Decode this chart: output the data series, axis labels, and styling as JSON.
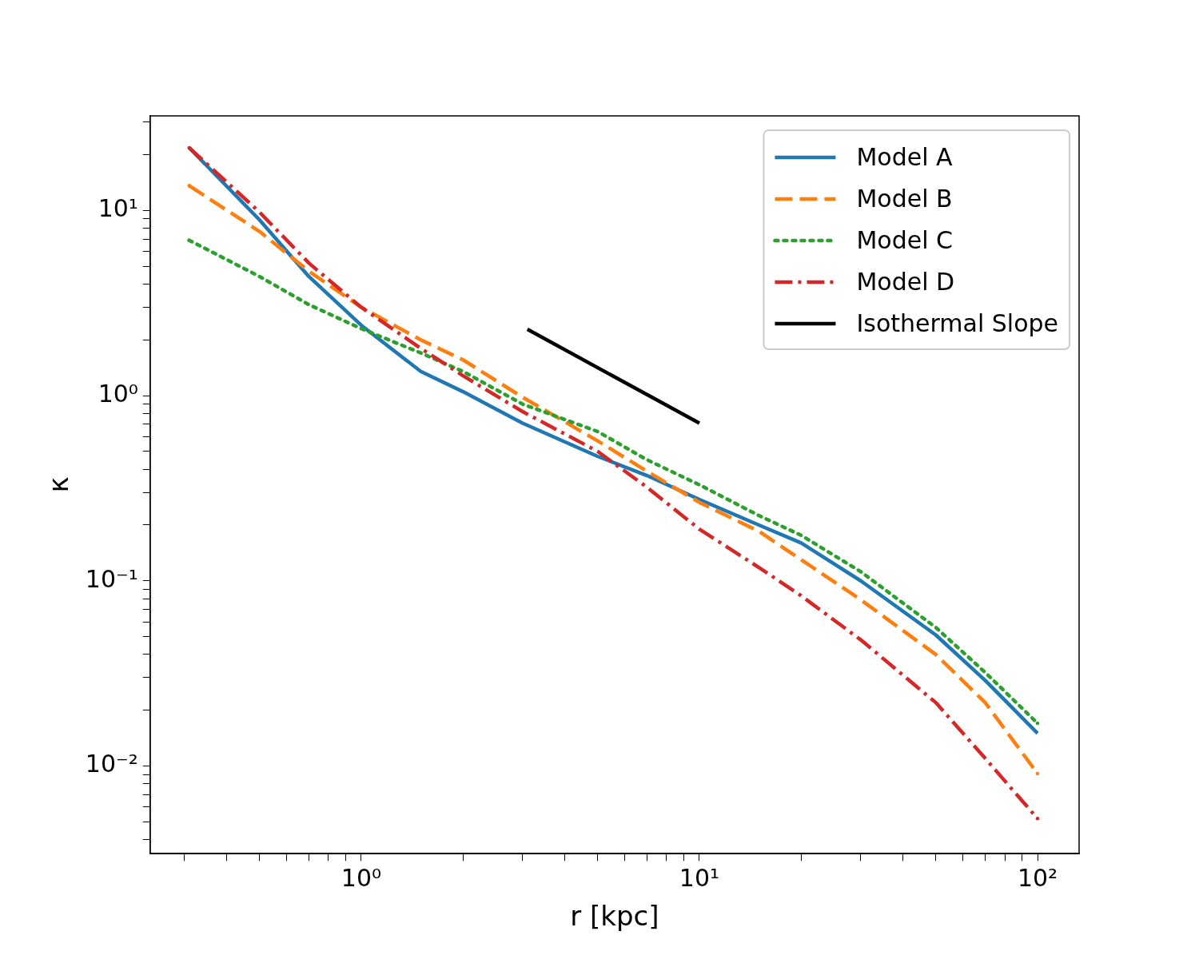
{
  "chart_data": {
    "type": "line",
    "xlabel": "r [kpc]",
    "ylabel": "κ",
    "log": "xy",
    "legend": "top right",
    "xlim": [
      0.2376,
      132.7
    ],
    "ylim": [
      0.00336,
      32.4
    ],
    "xticks": [
      {
        "value": 0.3,
        "label": null
      },
      {
        "value": 0.4,
        "label": null
      },
      {
        "value": 0.5,
        "label": null
      },
      {
        "value": 0.6,
        "label": null
      },
      {
        "value": 0.7,
        "label": null
      },
      {
        "value": 0.8,
        "label": null
      },
      {
        "value": 0.9,
        "label": null
      },
      {
        "value": 1,
        "label": "10⁰"
      },
      {
        "value": 2,
        "label": null
      },
      {
        "value": 3,
        "label": null
      },
      {
        "value": 4,
        "label": null
      },
      {
        "value": 5,
        "label": null
      },
      {
        "value": 6,
        "label": null
      },
      {
        "value": 7,
        "label": null
      },
      {
        "value": 8,
        "label": null
      },
      {
        "value": 9,
        "label": null
      },
      {
        "value": 10,
        "label": "10¹"
      },
      {
        "value": 20,
        "label": null
      },
      {
        "value": 30,
        "label": null
      },
      {
        "value": 40,
        "label": null
      },
      {
        "value": 50,
        "label": null
      },
      {
        "value": 60,
        "label": null
      },
      {
        "value": 70,
        "label": null
      },
      {
        "value": 80,
        "label": null
      },
      {
        "value": 90,
        "label": null
      },
      {
        "value": 100,
        "label": "10²"
      }
    ],
    "yticks": [
      {
        "value": 0.004,
        "label": null
      },
      {
        "value": 0.005,
        "label": null
      },
      {
        "value": 0.006,
        "label": null
      },
      {
        "value": 0.007,
        "label": null
      },
      {
        "value": 0.008,
        "label": null
      },
      {
        "value": 0.009,
        "label": null
      },
      {
        "value": 0.01,
        "label": "10⁻²"
      },
      {
        "value": 0.02,
        "label": null
      },
      {
        "value": 0.03,
        "label": null
      },
      {
        "value": 0.04,
        "label": null
      },
      {
        "value": 0.05,
        "label": null
      },
      {
        "value": 0.06,
        "label": null
      },
      {
        "value": 0.07,
        "label": null
      },
      {
        "value": 0.08,
        "label": null
      },
      {
        "value": 0.09,
        "label": null
      },
      {
        "value": 0.1,
        "label": "10⁻¹"
      },
      {
        "value": 0.2,
        "label": null
      },
      {
        "value": 0.3,
        "label": null
      },
      {
        "value": 0.4,
        "label": null
      },
      {
        "value": 0.5,
        "label": null
      },
      {
        "value": 0.6,
        "label": null
      },
      {
        "value": 0.7,
        "label": null
      },
      {
        "value": 0.8,
        "label": null
      },
      {
        "value": 0.9,
        "label": null
      },
      {
        "value": 1,
        "label": "10⁰"
      },
      {
        "value": 2,
        "label": null
      },
      {
        "value": 3,
        "label": null
      },
      {
        "value": 4,
        "label": null
      },
      {
        "value": 5,
        "label": null
      },
      {
        "value": 6,
        "label": null
      },
      {
        "value": 7,
        "label": null
      },
      {
        "value": 8,
        "label": null
      },
      {
        "value": 9,
        "label": null
      },
      {
        "value": 10,
        "label": "10¹"
      },
      {
        "value": 20,
        "label": null
      },
      {
        "value": 30,
        "label": null
      }
    ],
    "x": [
      0.31,
      0.5,
      0.7,
      1,
      1.5,
      2,
      3,
      5,
      7,
      10,
      15,
      20,
      30,
      50,
      70,
      100
    ],
    "series": [
      {
        "name": "Model A",
        "color": "#1f77b4",
        "line_style": "solid",
        "values": [
          21.8,
          8.9,
          4.4,
          2.4,
          1.35,
          1.05,
          0.71,
          0.47,
          0.37,
          0.275,
          0.2,
          0.16,
          0.1,
          0.051,
          0.029,
          0.015
        ]
      },
      {
        "name": "Model B",
        "color": "#ff7f0e",
        "line_style": "dashed",
        "values": [
          13.6,
          7.7,
          4.7,
          3.0,
          2.0,
          1.56,
          0.98,
          0.57,
          0.39,
          0.265,
          0.185,
          0.13,
          0.079,
          0.04,
          0.022,
          0.0091
        ]
      },
      {
        "name": "Model C",
        "color": "#2ca02c",
        "line_style": "dotted",
        "values": [
          6.9,
          4.4,
          3.1,
          2.3,
          1.7,
          1.35,
          0.9,
          0.64,
          0.45,
          0.33,
          0.225,
          0.176,
          0.112,
          0.056,
          0.032,
          0.017
        ]
      },
      {
        "name": "Model D",
        "color": "#d62728",
        "line_style": "dashdot",
        "values": [
          21.8,
          9.8,
          5.2,
          3.0,
          1.8,
          1.28,
          0.82,
          0.5,
          0.32,
          0.19,
          0.118,
          0.083,
          0.048,
          0.022,
          0.011,
          0.0052
        ]
      },
      {
        "name": "Isothermal Slope",
        "color": "#000000",
        "line_style": "solid",
        "x": [
          3.1,
          10
        ],
        "values": [
          2.28,
          0.71
        ]
      }
    ]
  }
}
